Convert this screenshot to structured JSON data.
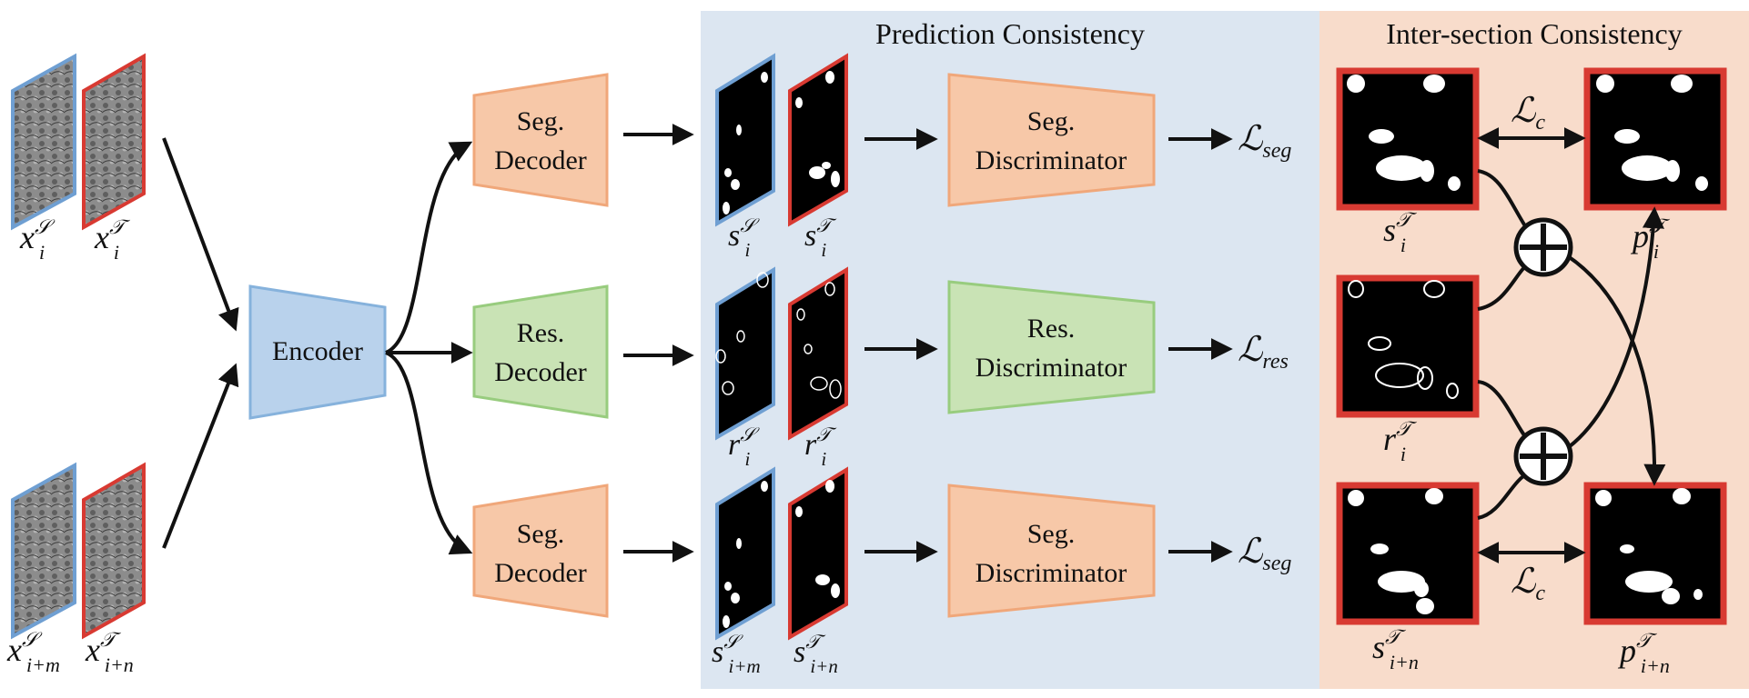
{
  "sections": {
    "prediction_title": "Prediction Consistency",
    "intersection_title": "Inter-section Consistency"
  },
  "encoder": {
    "label": "Encoder"
  },
  "decoders": [
    {
      "line1": "Seg.",
      "line2": "Decoder"
    },
    {
      "line1": "Res.",
      "line2": "Decoder"
    },
    {
      "line1": "Seg.",
      "line2": "Decoder"
    }
  ],
  "discriminators": [
    {
      "line1": "Seg.",
      "line2": "Discriminator"
    },
    {
      "line1": "Res.",
      "line2": "Discriminator"
    },
    {
      "line1": "Seg.",
      "line2": "Discriminator"
    }
  ],
  "losses": [
    {
      "base": "ℒ",
      "sub": "seg"
    },
    {
      "base": "ℒ",
      "sub": "res"
    },
    {
      "base": "ℒ",
      "sub": "seg"
    },
    {
      "base": "ℒ",
      "sub": "c"
    },
    {
      "base": "ℒ",
      "sub": "c"
    }
  ],
  "inputs": {
    "top": [
      {
        "base": "x",
        "sup": "𝒮",
        "sub": "i"
      },
      {
        "base": "x",
        "sup": "𝒯",
        "sub": "i"
      }
    ],
    "bottom": [
      {
        "base": "x",
        "sup": "𝒮",
        "sub": "i+m"
      },
      {
        "base": "x",
        "sup": "𝒯",
        "sub": "i+n"
      }
    ]
  },
  "outputs": {
    "row1": [
      {
        "base": "s",
        "sup": "𝒮",
        "sub": "i"
      },
      {
        "base": "s",
        "sup": "𝒯",
        "sub": "i"
      }
    ],
    "row2": [
      {
        "base": "r",
        "sup": "𝒮",
        "sub": "i"
      },
      {
        "base": "r",
        "sup": "𝒯",
        "sub": "i"
      }
    ],
    "row3": [
      {
        "base": "s",
        "sup": "𝒮",
        "sub": "i+m"
      },
      {
        "base": "s",
        "sup": "𝒯",
        "sub": "i+n"
      }
    ]
  },
  "intersection_labels": {
    "s_i": {
      "base": "s",
      "sup": "𝒯",
      "sub": "i"
    },
    "r_i": {
      "base": "r",
      "sup": "𝒯",
      "sub": "i"
    },
    "s_in": {
      "base": "s",
      "sup": "𝒯",
      "sub": "i+n"
    },
    "p_i": {
      "base": "p",
      "sup": "𝒯",
      "sub": "i"
    },
    "p_in": {
      "base": "p",
      "sup": "𝒯",
      "sub": "i+n"
    }
  },
  "colors": {
    "prediction_bg": "#dce6f1",
    "intersection_bg": "#f8dccb",
    "source_border": "#6f9fd2",
    "target_border": "#d83a32",
    "seg_fill": "#f7c8a8",
    "seg_stroke": "#f0a77a",
    "res_fill": "#c9e3b5",
    "res_stroke": "#98cc7e",
    "enc_fill": "#b9d2ec",
    "enc_stroke": "#86b2dc"
  }
}
